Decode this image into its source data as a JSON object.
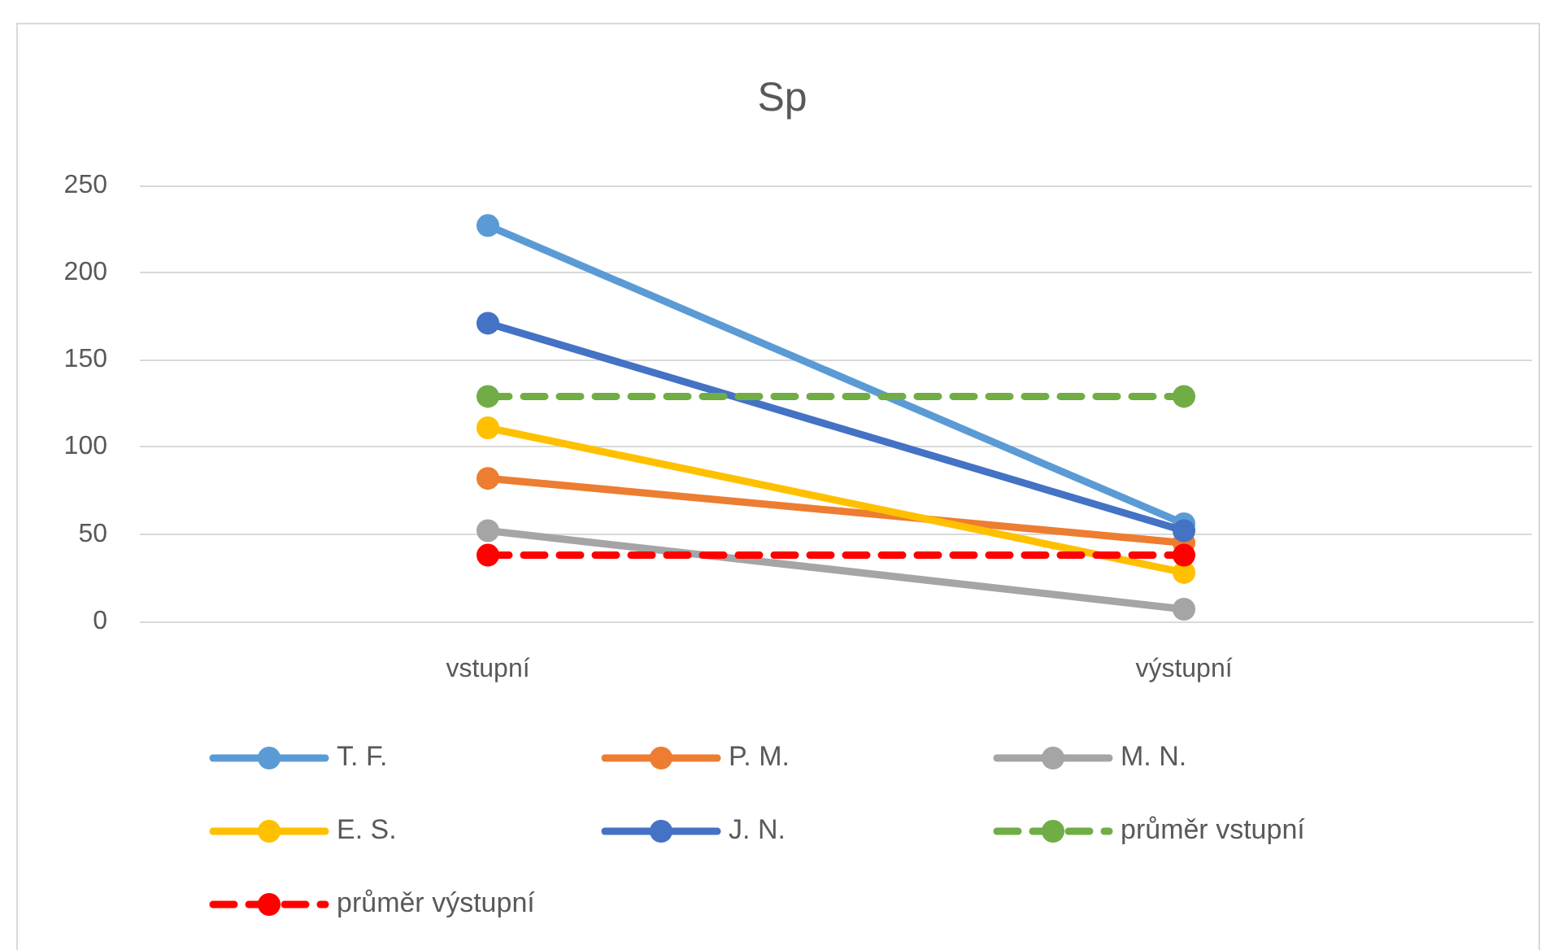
{
  "chart_data": {
    "type": "line",
    "title": "Sp",
    "categories": [
      "vstupní",
      "výstupní"
    ],
    "series": [
      {
        "name": "T. F.",
        "color": "#5b9bd5",
        "values": [
          227,
          56
        ]
      },
      {
        "name": "P. M.",
        "color": "#ed7d31",
        "values": [
          82,
          45
        ]
      },
      {
        "name": "M. N.",
        "color": "#a5a5a5",
        "values": [
          52,
          7
        ]
      },
      {
        "name": "E. S.",
        "color": "#ffc000",
        "values": [
          111,
          28
        ]
      },
      {
        "name": "J. N.",
        "color": "#4472c4",
        "values": [
          171,
          52
        ]
      },
      {
        "name": "průměr vstupní",
        "color": "#70ad47",
        "values": [
          129,
          129
        ],
        "line_style": "dashed"
      },
      {
        "name": "průměr výstupní",
        "color": "#ff0000",
        "values": [
          38,
          38
        ],
        "line_style": "dashed"
      }
    ],
    "ylim": [
      0,
      250
    ],
    "yticks": [
      0,
      50,
      100,
      150,
      200,
      250
    ],
    "grid": "y",
    "legend": "bottom",
    "marker": "circle",
    "line_style": "solid"
  }
}
